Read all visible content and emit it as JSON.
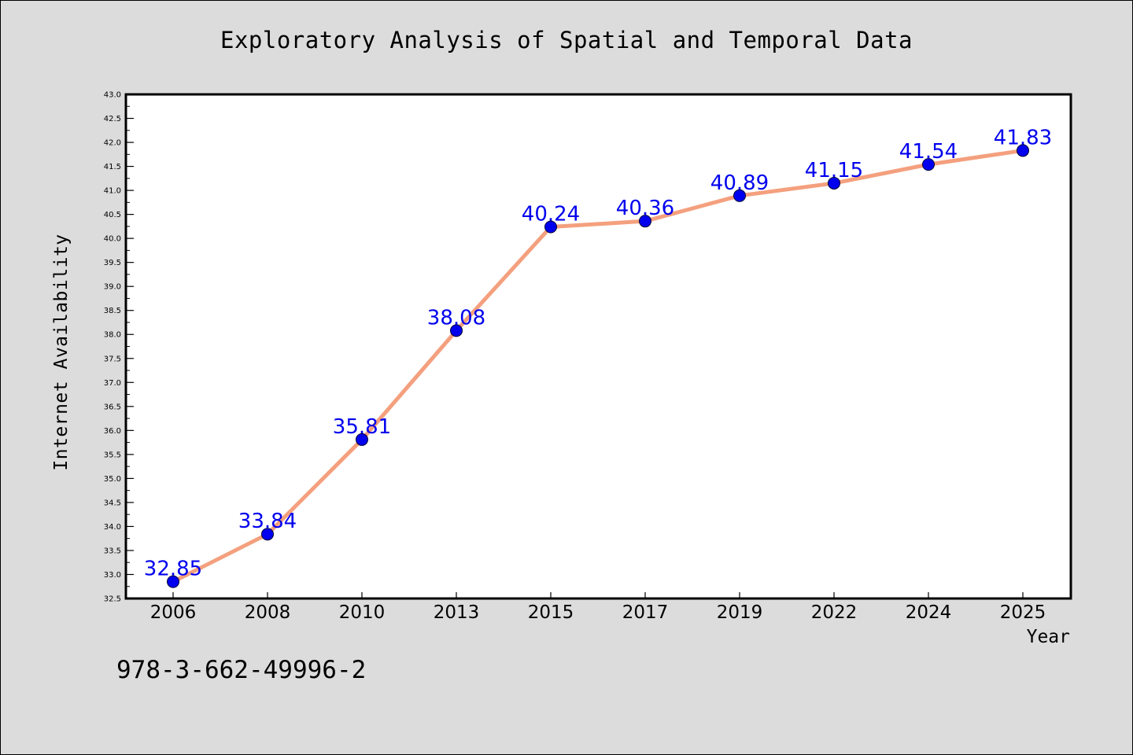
{
  "footnote": "978-3-662-49996-2",
  "colors": {
    "background": "#dcdcdc",
    "plot_background": "#ffffff",
    "line": "#f4a07e",
    "marker": "#0000ee",
    "data_label": "#0000ee"
  },
  "chart_data": {
    "type": "line",
    "title": "Exploratory Analysis of Spatial and Temporal Data",
    "xlabel": "Year",
    "ylabel": "Internet Availability",
    "categories": [
      "2006",
      "2008",
      "2010",
      "2013",
      "2015",
      "2017",
      "2019",
      "2022",
      "2024",
      "2025"
    ],
    "series": [
      {
        "values": [
          32.85,
          33.84,
          35.81,
          38.08,
          40.24,
          40.36,
          40.89,
          41.15,
          41.54,
          41.83
        ]
      }
    ],
    "data_labels": [
      "32.85",
      "33.84",
      "35.81",
      "38.08",
      "40.24",
      "40.36",
      "40.89",
      "41.15",
      "41.54",
      "41.83"
    ],
    "ylim": [
      32.5,
      43.0
    ],
    "yticks": [
      "32.5",
      "33.0",
      "33.5",
      "34.0",
      "34.5",
      "35.0",
      "35.5",
      "36.0",
      "36.5",
      "37.0",
      "37.5",
      "38.0",
      "38.5",
      "39.0",
      "39.5",
      "40.0",
      "40.5",
      "41.0",
      "41.5",
      "42.0",
      "42.5",
      "43.0"
    ],
    "grid": false,
    "legend": "none"
  }
}
